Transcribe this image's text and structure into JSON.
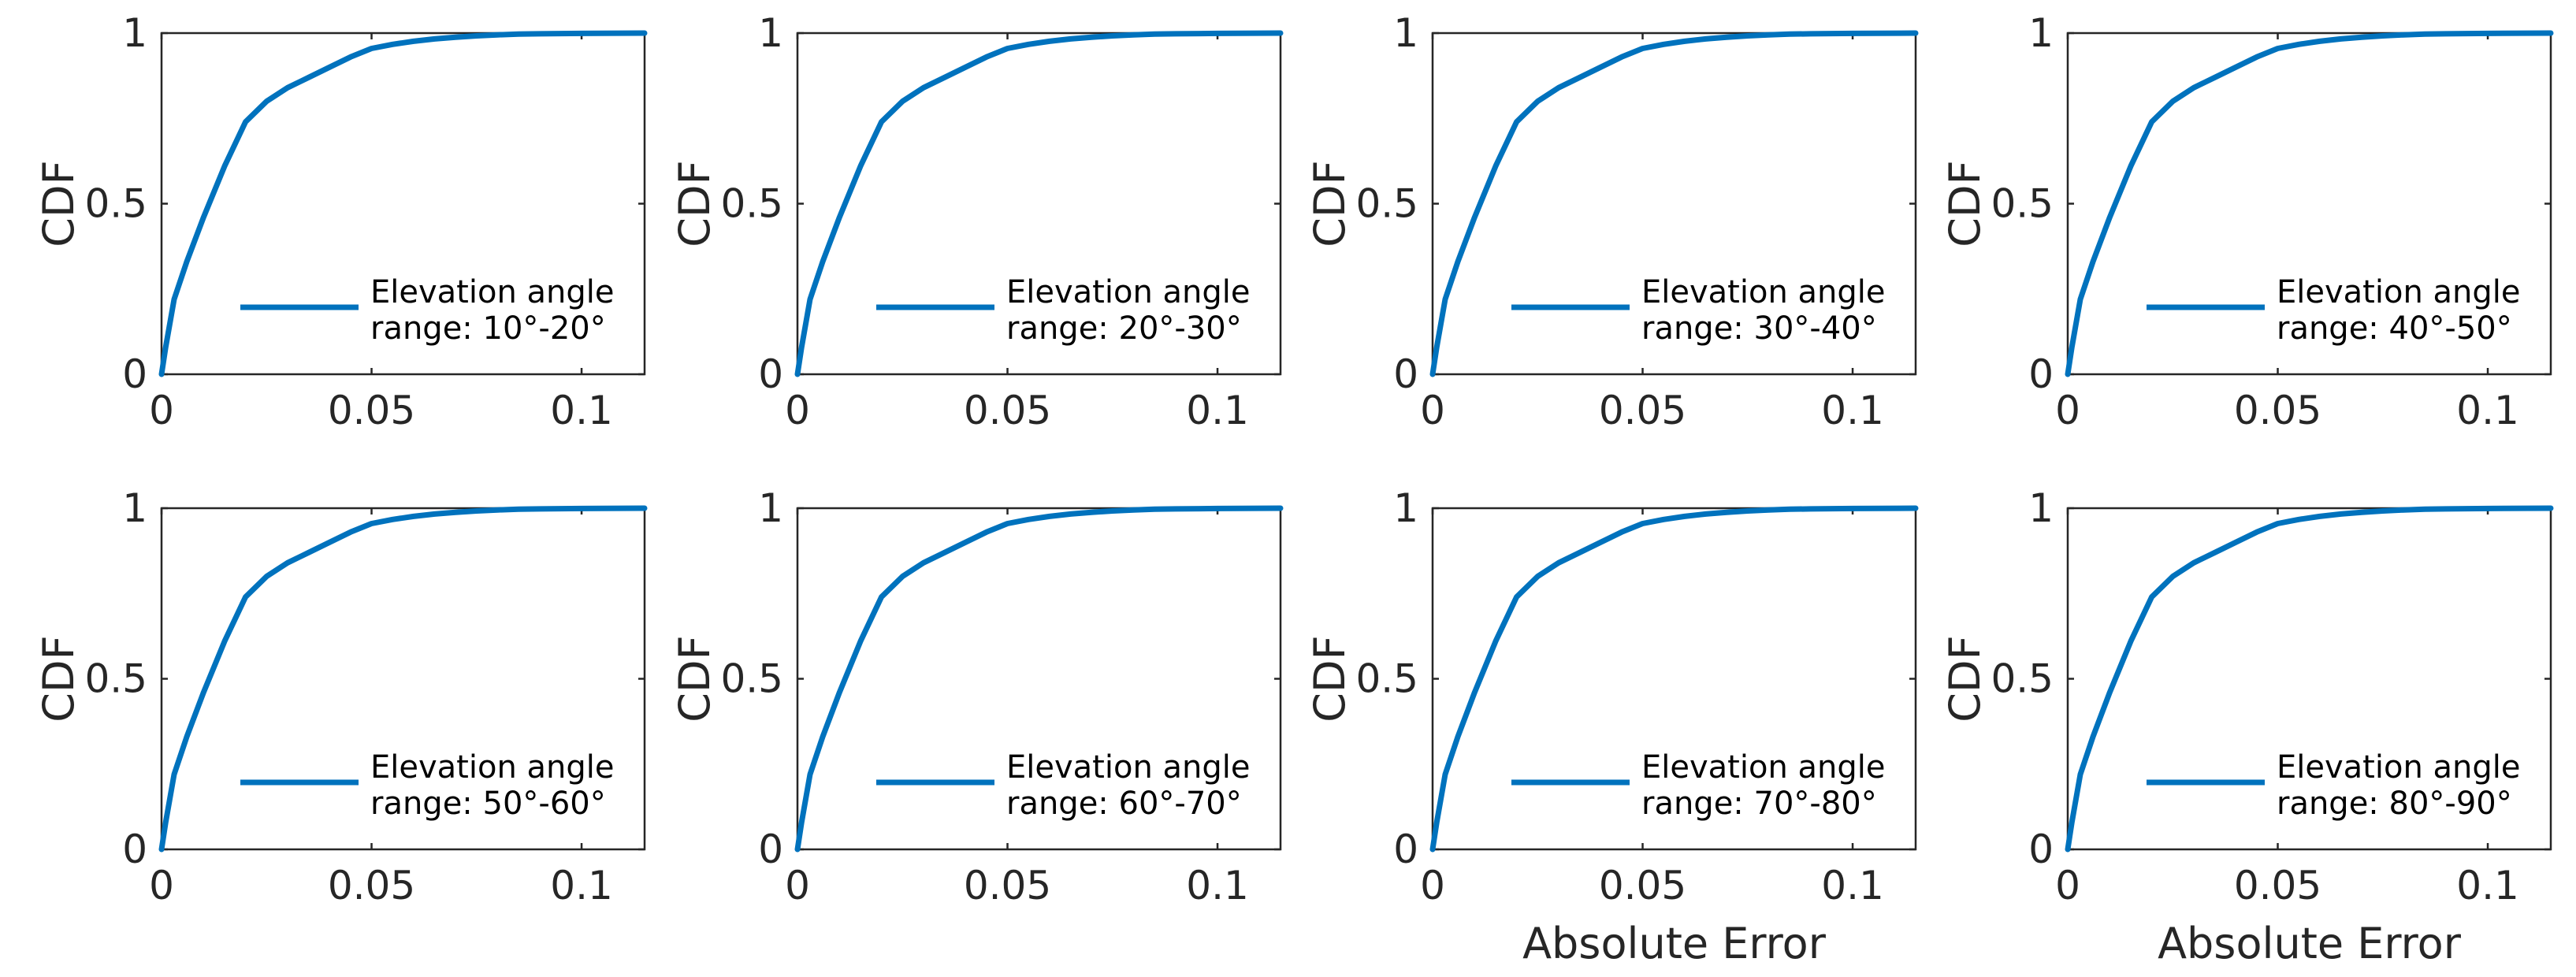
{
  "chart_data": [
    {
      "type": "line",
      "xlabel": "",
      "ylabel": "CDF",
      "xlim": [
        0,
        0.115
      ],
      "ylim": [
        0,
        1
      ],
      "xticks": [
        "0",
        "0.05",
        "0.1"
      ],
      "yticks": [
        "0",
        "0.5",
        "1"
      ],
      "legend_position": "lower-right",
      "series": [
        {
          "name": "Elevation angle range: 10°-20°",
          "legend_lines": [
            "Elevation angle",
            "range: 10°-20°"
          ],
          "x": [
            0,
            0.001,
            0.003,
            0.006,
            0.01,
            0.015,
            0.02,
            0.025,
            0.03,
            0.035,
            0.04,
            0.045,
            0.05,
            0.055,
            0.06,
            0.065,
            0.07,
            0.075,
            0.08,
            0.085,
            0.09,
            0.1,
            0.115
          ],
          "y": [
            0,
            0.08,
            0.22,
            0.33,
            0.46,
            0.61,
            0.74,
            0.8,
            0.84,
            0.87,
            0.9,
            0.93,
            0.955,
            0.967,
            0.976,
            0.983,
            0.988,
            0.992,
            0.995,
            0.997,
            0.998,
            0.999,
            1.0
          ]
        }
      ]
    },
    {
      "type": "line",
      "xlabel": "",
      "ylabel": "CDF",
      "xlim": [
        0,
        0.115
      ],
      "ylim": [
        0,
        1
      ],
      "xticks": [
        "0",
        "0.05",
        "0.1"
      ],
      "yticks": [
        "0",
        "0.5",
        "1"
      ],
      "legend_position": "lower-right",
      "series": [
        {
          "name": "Elevation angle range: 20°-30°",
          "legend_lines": [
            "Elevation angle",
            "range: 20°-30°"
          ],
          "x": [
            0,
            0.001,
            0.003,
            0.006,
            0.01,
            0.015,
            0.02,
            0.025,
            0.03,
            0.035,
            0.04,
            0.045,
            0.05,
            0.055,
            0.06,
            0.065,
            0.07,
            0.075,
            0.08,
            0.085,
            0.09,
            0.1,
            0.115
          ],
          "y": [
            0,
            0.08,
            0.22,
            0.33,
            0.46,
            0.61,
            0.74,
            0.8,
            0.84,
            0.87,
            0.9,
            0.93,
            0.955,
            0.967,
            0.976,
            0.983,
            0.988,
            0.992,
            0.995,
            0.997,
            0.998,
            0.999,
            1.0
          ]
        }
      ]
    },
    {
      "type": "line",
      "xlabel": "",
      "ylabel": "CDF",
      "xlim": [
        0,
        0.115
      ],
      "ylim": [
        0,
        1
      ],
      "xticks": [
        "0",
        "0.05",
        "0.1"
      ],
      "yticks": [
        "0",
        "0.5",
        "1"
      ],
      "legend_position": "lower-right",
      "series": [
        {
          "name": "Elevation angle range: 30°-40°",
          "legend_lines": [
            "Elevation angle",
            "range: 30°-40°"
          ],
          "x": [
            0,
            0.001,
            0.003,
            0.006,
            0.01,
            0.015,
            0.02,
            0.025,
            0.03,
            0.035,
            0.04,
            0.045,
            0.05,
            0.055,
            0.06,
            0.065,
            0.07,
            0.075,
            0.08,
            0.085,
            0.09,
            0.1,
            0.115
          ],
          "y": [
            0,
            0.08,
            0.22,
            0.33,
            0.46,
            0.61,
            0.74,
            0.8,
            0.84,
            0.87,
            0.9,
            0.93,
            0.955,
            0.967,
            0.976,
            0.983,
            0.988,
            0.992,
            0.995,
            0.997,
            0.998,
            0.999,
            1.0
          ]
        }
      ]
    },
    {
      "type": "line",
      "xlabel": "",
      "ylabel": "CDF",
      "xlim": [
        0,
        0.115
      ],
      "ylim": [
        0,
        1
      ],
      "xticks": [
        "0",
        "0.05",
        "0.1"
      ],
      "yticks": [
        "0",
        "0.5",
        "1"
      ],
      "legend_position": "lower-right",
      "series": [
        {
          "name": "Elevation angle range: 40°-50°",
          "legend_lines": [
            "Elevation angle",
            "range: 40°-50°"
          ],
          "x": [
            0,
            0.001,
            0.003,
            0.006,
            0.01,
            0.015,
            0.02,
            0.025,
            0.03,
            0.035,
            0.04,
            0.045,
            0.05,
            0.055,
            0.06,
            0.065,
            0.07,
            0.075,
            0.08,
            0.085,
            0.09,
            0.1,
            0.115
          ],
          "y": [
            0,
            0.08,
            0.22,
            0.33,
            0.46,
            0.61,
            0.74,
            0.8,
            0.84,
            0.87,
            0.9,
            0.93,
            0.955,
            0.967,
            0.976,
            0.983,
            0.988,
            0.992,
            0.995,
            0.997,
            0.998,
            0.999,
            1.0
          ]
        }
      ]
    },
    {
      "type": "line",
      "xlabel": "",
      "ylabel": "CDF",
      "xlim": [
        0,
        0.115
      ],
      "ylim": [
        0,
        1
      ],
      "xticks": [
        "0",
        "0.05",
        "0.1"
      ],
      "yticks": [
        "0",
        "0.5",
        "1"
      ],
      "legend_position": "lower-right",
      "series": [
        {
          "name": "Elevation angle range: 50°-60°",
          "legend_lines": [
            "Elevation angle",
            "range: 50°-60°"
          ],
          "x": [
            0,
            0.001,
            0.003,
            0.006,
            0.01,
            0.015,
            0.02,
            0.025,
            0.03,
            0.035,
            0.04,
            0.045,
            0.05,
            0.055,
            0.06,
            0.065,
            0.07,
            0.075,
            0.08,
            0.085,
            0.09,
            0.1,
            0.115
          ],
          "y": [
            0,
            0.08,
            0.22,
            0.33,
            0.46,
            0.61,
            0.74,
            0.8,
            0.84,
            0.87,
            0.9,
            0.93,
            0.955,
            0.967,
            0.976,
            0.983,
            0.988,
            0.992,
            0.995,
            0.997,
            0.998,
            0.999,
            1.0
          ]
        }
      ]
    },
    {
      "type": "line",
      "xlabel": "",
      "ylabel": "CDF",
      "xlim": [
        0,
        0.115
      ],
      "ylim": [
        0,
        1
      ],
      "xticks": [
        "0",
        "0.05",
        "0.1"
      ],
      "yticks": [
        "0",
        "0.5",
        "1"
      ],
      "legend_position": "lower-right",
      "series": [
        {
          "name": "Elevation angle range: 60°-70°",
          "legend_lines": [
            "Elevation angle",
            "range: 60°-70°"
          ],
          "x": [
            0,
            0.001,
            0.003,
            0.006,
            0.01,
            0.015,
            0.02,
            0.025,
            0.03,
            0.035,
            0.04,
            0.045,
            0.05,
            0.055,
            0.06,
            0.065,
            0.07,
            0.075,
            0.08,
            0.085,
            0.09,
            0.1,
            0.115
          ],
          "y": [
            0,
            0.08,
            0.22,
            0.33,
            0.46,
            0.61,
            0.74,
            0.8,
            0.84,
            0.87,
            0.9,
            0.93,
            0.955,
            0.967,
            0.976,
            0.983,
            0.988,
            0.992,
            0.995,
            0.997,
            0.998,
            0.999,
            1.0
          ]
        }
      ]
    },
    {
      "type": "line",
      "xlabel": "Absolute Error",
      "ylabel": "CDF",
      "xlim": [
        0,
        0.115
      ],
      "ylim": [
        0,
        1
      ],
      "xticks": [
        "0",
        "0.05",
        "0.1"
      ],
      "yticks": [
        "0",
        "0.5",
        "1"
      ],
      "legend_position": "lower-right",
      "series": [
        {
          "name": "Elevation angle range: 70°-80°",
          "legend_lines": [
            "Elevation angle",
            "range: 70°-80°"
          ],
          "x": [
            0,
            0.001,
            0.003,
            0.006,
            0.01,
            0.015,
            0.02,
            0.025,
            0.03,
            0.035,
            0.04,
            0.045,
            0.05,
            0.055,
            0.06,
            0.065,
            0.07,
            0.075,
            0.08,
            0.085,
            0.09,
            0.1,
            0.115
          ],
          "y": [
            0,
            0.08,
            0.22,
            0.33,
            0.46,
            0.61,
            0.74,
            0.8,
            0.84,
            0.87,
            0.9,
            0.93,
            0.955,
            0.967,
            0.976,
            0.983,
            0.988,
            0.992,
            0.995,
            0.997,
            0.998,
            0.999,
            1.0
          ]
        }
      ]
    },
    {
      "type": "line",
      "xlabel": "Absolute Error",
      "ylabel": "CDF",
      "xlim": [
        0,
        0.115
      ],
      "ylim": [
        0,
        1
      ],
      "xticks": [
        "0",
        "0.05",
        "0.1"
      ],
      "yticks": [
        "0",
        "0.5",
        "1"
      ],
      "legend_position": "lower-right",
      "series": [
        {
          "name": "Elevation angle range: 80°-90°",
          "legend_lines": [
            "Elevation angle",
            "range: 80°-90°"
          ],
          "x": [
            0,
            0.001,
            0.003,
            0.006,
            0.01,
            0.015,
            0.02,
            0.025,
            0.03,
            0.035,
            0.04,
            0.045,
            0.05,
            0.055,
            0.06,
            0.065,
            0.07,
            0.075,
            0.08,
            0.085,
            0.09,
            0.1,
            0.115
          ],
          "y": [
            0,
            0.08,
            0.22,
            0.33,
            0.46,
            0.61,
            0.74,
            0.8,
            0.84,
            0.87,
            0.9,
            0.93,
            0.955,
            0.967,
            0.976,
            0.983,
            0.988,
            0.992,
            0.995,
            0.997,
            0.998,
            0.999,
            1.0
          ]
        }
      ]
    }
  ],
  "colors": {
    "series": "#0072BD",
    "axis": "#262626"
  }
}
